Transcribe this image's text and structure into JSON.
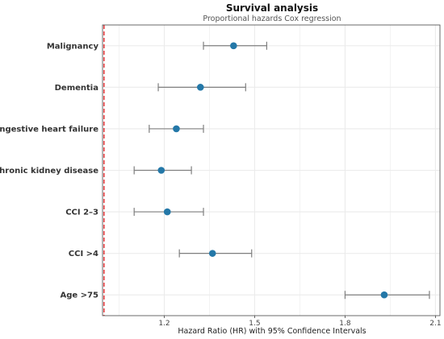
{
  "chart_data": {
    "type": "forest",
    "title": "Survival analysis",
    "subtitle": "Proportional hazards Cox regression",
    "xlabel": "Hazard Ratio (HR) with 95% Confidence Intervals",
    "xlim": [
      0.995,
      2.115
    ],
    "xticks": [
      1.2,
      1.5,
      1.8,
      2.1
    ],
    "xtick_labels": [
      "1.2",
      "1.5",
      "1.8",
      "2.1"
    ],
    "reference_line": 1.0,
    "categories": [
      "Malignancy",
      "Dementia",
      "Congestive heart failure",
      "Chronic kidney disease",
      "CCI 2–3",
      "CCI >4",
      "Age >75"
    ],
    "hr": [
      1.43,
      1.32,
      1.24,
      1.19,
      1.21,
      1.36,
      1.93
    ],
    "ci_low": [
      1.33,
      1.18,
      1.15,
      1.1,
      1.1,
      1.25,
      1.8
    ],
    "ci_high": [
      1.54,
      1.47,
      1.33,
      1.29,
      1.33,
      1.49,
      2.08
    ],
    "grid": true,
    "colors": {
      "point": "#2478a8",
      "errorbar": "#7f7f7f",
      "reference": "#e31a1c",
      "grid": "#ebebeb",
      "panel_border": "#444444"
    }
  }
}
